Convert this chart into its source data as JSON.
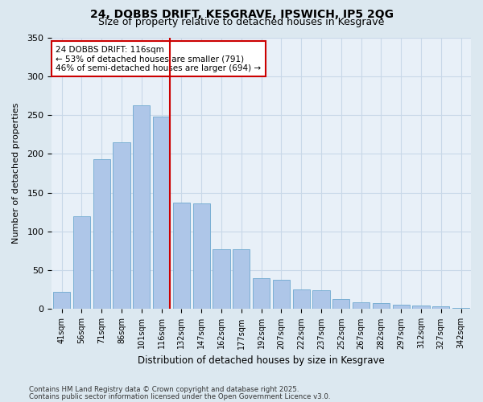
{
  "title_line1": "24, DOBBS DRIFT, KESGRAVE, IPSWICH, IP5 2QG",
  "title_line2": "Size of property relative to detached houses in Kesgrave",
  "xlabel": "Distribution of detached houses by size in Kesgrave",
  "ylabel": "Number of detached properties",
  "categories": [
    "41sqm",
    "56sqm",
    "71sqm",
    "86sqm",
    "101sqm",
    "116sqm",
    "132sqm",
    "147sqm",
    "162sqm",
    "177sqm",
    "192sqm",
    "207sqm",
    "222sqm",
    "237sqm",
    "252sqm",
    "267sqm",
    "282sqm",
    "297sqm",
    "312sqm",
    "327sqm",
    "342sqm"
  ],
  "values": [
    22,
    120,
    193,
    215,
    263,
    248,
    137,
    136,
    77,
    77,
    40,
    38,
    25,
    24,
    13,
    9,
    8,
    6,
    5,
    4,
    2
  ],
  "bar_color": "#aec6e8",
  "bar_edge_color": "#7aafd4",
  "highlight_index": 5,
  "highlight_color": "#cc0000",
  "annotation_text": "24 DOBBS DRIFT: 116sqm\n← 53% of detached houses are smaller (791)\n46% of semi-detached houses are larger (694) →",
  "annotation_box_color": "#ffffff",
  "annotation_box_edge": "#cc0000",
  "grid_color": "#c8d8e8",
  "bg_color": "#dce8f0",
  "plot_bg_color": "#e8f0f8",
  "ylim": [
    0,
    350
  ],
  "yticks": [
    0,
    50,
    100,
    150,
    200,
    250,
    300,
    350
  ],
  "footer_line1": "Contains HM Land Registry data © Crown copyright and database right 2025.",
  "footer_line2": "Contains public sector information licensed under the Open Government Licence v3.0."
}
